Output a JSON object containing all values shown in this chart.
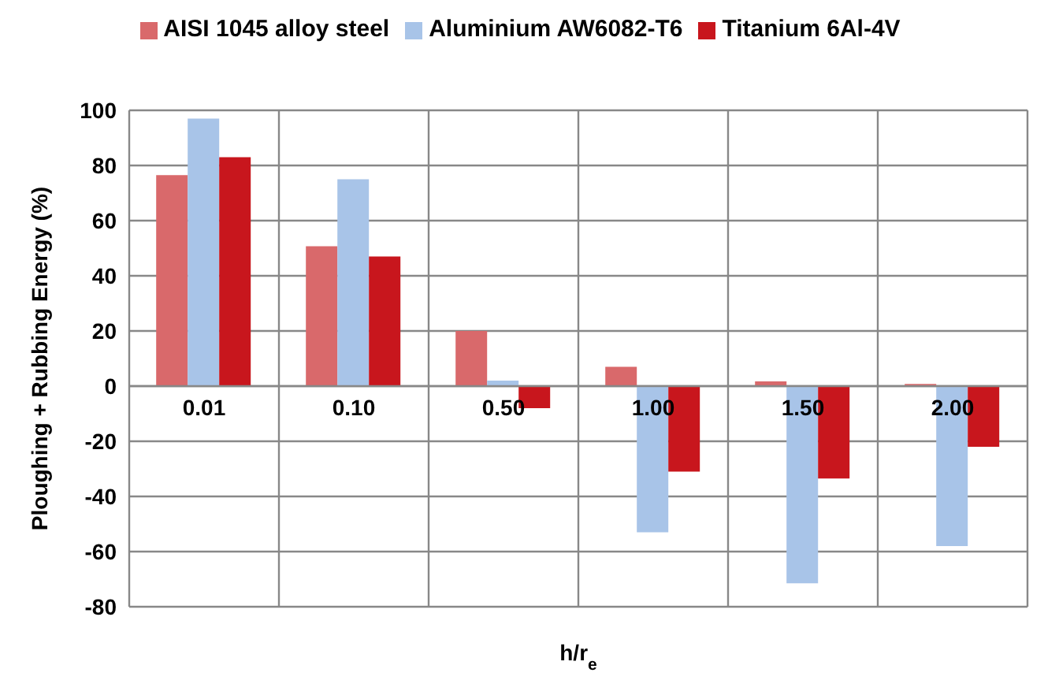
{
  "chart_data": {
    "type": "bar",
    "xlabel": "h/r$_{e}$",
    "ylabel": "Ploughing + Rubbing Energy (%)",
    "categories": [
      "0.01",
      "0.10",
      "0.50",
      "1.00",
      "1.50",
      "2.00"
    ],
    "series": [
      {
        "name": "AISI 1045 alloy steel",
        "color": "#d9696b",
        "values": [
          76.5,
          50.7,
          20,
          7,
          1.7,
          0.8
        ]
      },
      {
        "name": "Aluminium AW6082-T6",
        "color": "#a8c4e8",
        "values": [
          97,
          75,
          2,
          -53,
          -71.5,
          -58
        ]
      },
      {
        "name": "Titanium 6Al-4V",
        "color": "#c8161d",
        "values": [
          83,
          47,
          -8,
          -31,
          -33.5,
          -22
        ]
      }
    ],
    "ylim": [
      -80,
      100
    ],
    "yticks": [
      -80,
      -60,
      -40,
      -20,
      0,
      20,
      40,
      60,
      80,
      100
    ],
    "grid": true,
    "legend": "top"
  }
}
